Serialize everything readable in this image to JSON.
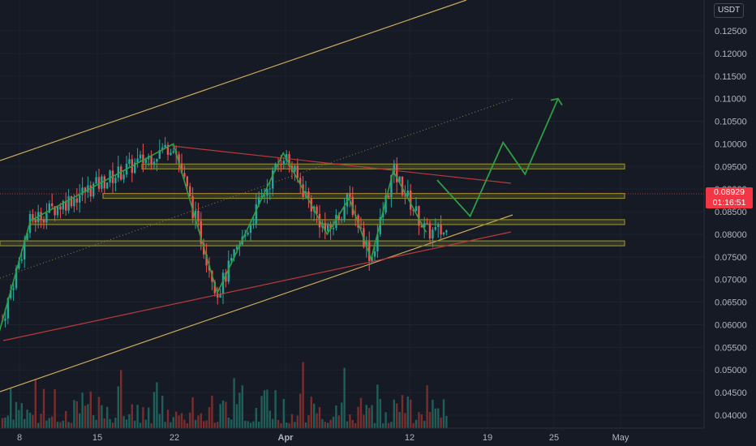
{
  "currency_label": "USDT",
  "last_price": {
    "value": "0.08929",
    "countdown": "01:16:51",
    "color": "#f23645"
  },
  "colors": {
    "background": "#161a25",
    "grid": "#1f2330",
    "candle_up": "#26a69a",
    "candle_down": "#ef5350",
    "projection": "#2e9e43",
    "zone": "#8c8a2e",
    "channel": "#c8a95a",
    "resistance": "#b83a3a"
  },
  "chart_data": {
    "type": "candlestick",
    "y_axis": {
      "ticks": [
        "0.12500",
        "0.12000",
        "0.11500",
        "0.11000",
        "0.10500",
        "0.10000",
        "0.09500",
        "0.09000",
        "0.08500",
        "0.08000",
        "0.07500",
        "0.07000",
        "0.06500",
        "0.06000",
        "0.05500",
        "0.05000",
        "0.04500",
        "0.04000"
      ],
      "range": [
        0.0385,
        0.1295
      ]
    },
    "x_axis": {
      "labels": [
        "8",
        "15",
        "22",
        "Apr",
        "12",
        "19",
        "25",
        "May"
      ],
      "bold_labels": [
        "Apr"
      ]
    },
    "horizontal_zones": [
      {
        "price": 0.095
      },
      {
        "price": 0.0885
      },
      {
        "price": 0.0827
      },
      {
        "price": 0.078
      }
    ],
    "descending_resistance": {
      "from": {
        "x": "Mar 22",
        "y": 0.1
      },
      "to": {
        "x": "Apr 22",
        "y": 0.092
      }
    },
    "ascending_support": {
      "from": {
        "x": "Mar 6",
        "y": 0.057
      },
      "to": {
        "x": "Apr 21",
        "y": 0.0807
      }
    },
    "projection_path_prices": [
      0.092,
      0.084,
      0.1003,
      0.0933,
      0.11
    ],
    "projection_path_dates": [
      "Apr 15",
      "Apr 18",
      "Apr 21",
      "Apr 23",
      "Apr 26"
    ],
    "zigzag_prices": [
      0.057,
      0.083,
      0.1,
      0.067,
      0.098,
      0.08,
      0.088,
      0.0745,
      0.094,
      0.0805
    ],
    "zigzag_dates": [
      "Mar 6",
      "Mar 9",
      "Mar 22",
      "Mar 26",
      "Apr 1",
      "Apr 5",
      "Apr 7",
      "Apr 9",
      "Apr 11",
      "Apr 14"
    ],
    "trend_channel": {
      "lower_end_price": 0.0845,
      "upper_end_price": 0.11,
      "mid_end_price": 0.11
    },
    "volume_note": "volume histogram along bottom"
  }
}
